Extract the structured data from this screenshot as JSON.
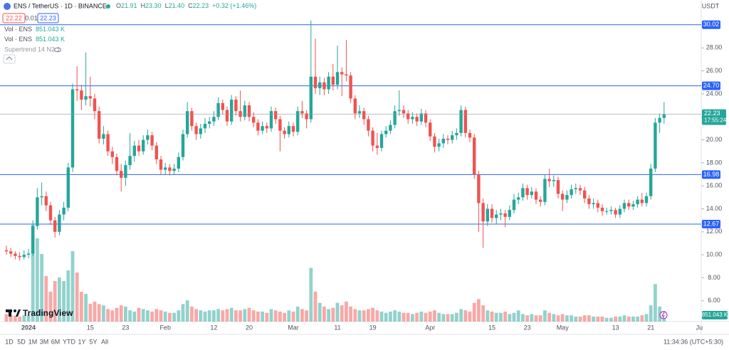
{
  "header": {
    "symbol": "ENS / TetherUS · 1D · BINANCE",
    "ohlc": [
      {
        "key": "O",
        "value": "21.91"
      },
      {
        "key": "H",
        "value": "23.30"
      },
      {
        "key": "L",
        "value": "21.40"
      },
      {
        "key": "C",
        "value": "22.23"
      }
    ],
    "change": "+0.32 (+1.46%)",
    "bid": "22.22",
    "spread": "0.01",
    "ask": "22.23"
  },
  "indicators": [
    {
      "name": "Vol · ENS"
    },
    {
      "name": "Vol · ENS"
    },
    {
      "name": "Supertrend 14 N2 1"
    }
  ],
  "watermark": "TradingView",
  "footer": {
    "ranges": [
      "1D",
      "5D",
      "1M",
      "3M",
      "6M",
      "YTD",
      "1Y",
      "5Y",
      "All"
    ],
    "time": "11:34:36 (UTC+5:30)"
  },
  "chart_data": {
    "type": "candlestick",
    "currency": "USDT",
    "up_color": "#26a69a",
    "down_color": "#ef5350",
    "level_color": "#2962ff",
    "ylim": [
      4.19,
      32.17
    ],
    "yticks": [
      {
        "value": 6,
        "label": "6.00"
      },
      {
        "value": 8,
        "label": "8.00"
      },
      {
        "value": 10,
        "label": "10.00"
      },
      {
        "value": 12,
        "label": "12.00"
      },
      {
        "value": 14,
        "label": "14.00"
      },
      {
        "value": 16,
        "label": "16.00"
      },
      {
        "value": 18,
        "label": "18.00"
      },
      {
        "value": 20,
        "label": "20.00"
      },
      {
        "value": 22,
        "label": "22.00"
      },
      {
        "value": 24,
        "label": "24.00"
      },
      {
        "value": 26,
        "label": "26.00"
      },
      {
        "value": 28,
        "label": "28.00"
      }
    ],
    "levels": [
      {
        "value": 30.02,
        "label": "30.02"
      },
      {
        "value": 24.7,
        "label": "24.70"
      },
      {
        "value": 16.98,
        "label": "16.98"
      },
      {
        "value": 12.67,
        "label": "12.67"
      }
    ],
    "last_price": {
      "value": 22.23,
      "countdown": "17:55:24"
    },
    "categories": [
      null,
      null,
      null,
      null,
      null,
      "2024",
      null,
      null,
      null,
      null,
      null,
      null,
      null,
      null,
      null,
      null,
      null,
      null,
      null,
      "15",
      null,
      null,
      null,
      null,
      null,
      null,
      null,
      "23",
      null,
      null,
      null,
      null,
      null,
      null,
      null,
      null,
      "Feb",
      null,
      null,
      null,
      null,
      null,
      null,
      null,
      null,
      null,
      null,
      "12",
      null,
      null,
      null,
      null,
      null,
      null,
      null,
      "20",
      null,
      null,
      null,
      null,
      null,
      null,
      null,
      null,
      null,
      "Mar",
      null,
      null,
      null,
      null,
      null,
      null,
      null,
      null,
      null,
      "11",
      null,
      null,
      null,
      null,
      null,
      null,
      null,
      "19",
      null,
      null,
      null,
      null,
      null,
      null,
      null,
      null,
      null,
      null,
      null,
      null,
      "Apr",
      null,
      null,
      null,
      null,
      null,
      null,
      null,
      null,
      null,
      null,
      null,
      null,
      null,
      "15",
      null,
      null,
      null,
      null,
      null,
      null,
      null,
      "23",
      null,
      null,
      null,
      null,
      null,
      null,
      null,
      "May",
      null,
      null,
      null,
      null,
      null,
      null,
      null,
      null,
      null,
      null,
      null,
      "13",
      null,
      null,
      null,
      null,
      null,
      null,
      null,
      "21",
      null,
      null,
      null,
      null,
      null,
      null,
      null,
      null,
      null,
      null,
      "Ju"
    ],
    "open": [
      10.4,
      10.3,
      10.1,
      9.9,
      9.8,
      10.0,
      10.1,
      12.5,
      15.0,
      15.1,
      14.3,
      13.0,
      12.0,
      13.5,
      14.1,
      17.6,
      24.4,
      24.3,
      23.5,
      23.8,
      23.6,
      22.5,
      20.1,
      20.5,
      19.0,
      18.5,
      17.3,
      16.7,
      17.8,
      18.6,
      19.5,
      19.0,
      20.0,
      20.4,
      19.5,
      18.3,
      17.4,
      17.6,
      17.3,
      17.5,
      18.5,
      20.5,
      22.5,
      21.2,
      20.5,
      21.0,
      21.4,
      21.6,
      22.0,
      23.2,
      22.6,
      21.6,
      23.5,
      22.5,
      22.0,
      23.0,
      22.0,
      21.5,
      20.8,
      21.2,
      21.0,
      22.5,
      21.8,
      20.8,
      20.5,
      21.2,
      20.7,
      22.5,
      22.3,
      21.8,
      25.5,
      24.5,
      25.0,
      24.4,
      25.5,
      24.8,
      25.9,
      25.7,
      25.6,
      23.6,
      22.3,
      22.5,
      21.8,
      20.8,
      19.5,
      19.3,
      20.5,
      20.8,
      21.3,
      22.5,
      22.6,
      22.3,
      21.8,
      22.0,
      21.6,
      22.3,
      21.5,
      20.3,
      19.4,
      19.7,
      20.1,
      20.0,
      20.4,
      20.6,
      22.6,
      20.6,
      20.2,
      17.0,
      14.5,
      12.9,
      14.0,
      13.2,
      13.5,
      13.6,
      13.3,
      13.9,
      14.8,
      15.0,
      15.8,
      15.2,
      15.5,
      14.8,
      14.6,
      16.6,
      16.4,
      16.5,
      15.3,
      14.8,
      15.2,
      15.7,
      15.8,
      15.6,
      14.9,
      14.4,
      14.5,
      14.1,
      13.8,
      13.8,
      13.9,
      13.5,
      14.0,
      14.5,
      14.2,
      14.4,
      14.8,
      14.5,
      15.1,
      17.5,
      21.5,
      21.91,
      null,
      null,
      null,
      null,
      null,
      null,
      null,
      null
    ],
    "high": [
      10.8,
      10.6,
      10.3,
      10.2,
      10.4,
      10.5,
      13.0,
      15.8,
      16.3,
      15.5,
      14.6,
      13.3,
      13.9,
      14.6,
      18.0,
      24.9,
      26.4,
      24.8,
      27.6,
      25.5,
      24.0,
      22.9,
      21.2,
      20.8,
      19.4,
      18.8,
      17.9,
      18.2,
      20.6,
      19.9,
      20.0,
      20.4,
      20.9,
      20.7,
      19.8,
      18.6,
      18.0,
      17.9,
      17.9,
      18.9,
      20.9,
      23.3,
      22.8,
      21.5,
      21.4,
      21.9,
      22.0,
      22.5,
      23.7,
      23.5,
      22.9,
      23.9,
      23.8,
      24.3,
      23.4,
      23.3,
      22.4,
      21.8,
      21.6,
      21.5,
      22.9,
      22.8,
      22.1,
      21.1,
      21.6,
      21.5,
      22.9,
      23.4,
      22.6,
      30.4,
      28.8,
      25.5,
      25.4,
      25.9,
      26.6,
      28.2,
      26.3,
      28.7,
      25.9,
      23.9,
      23.0,
      22.8,
      22.1,
      21.1,
      20.6,
      20.8,
      21.2,
      21.7,
      23.0,
      24.3,
      23.0,
      22.6,
      22.4,
      22.3,
      22.7,
      22.6,
      21.8,
      20.6,
      20.1,
      20.5,
      20.4,
      20.8,
      21.0,
      23.0,
      22.9,
      20.9,
      20.5,
      17.3,
      14.9,
      14.4,
      14.4,
      13.9,
      14.0,
      13.9,
      14.3,
      15.3,
      15.4,
      16.2,
      16.1,
      15.9,
      15.8,
      15.1,
      17.0,
      17.5,
      16.9,
      16.8,
      15.6,
      15.6,
      16.1,
      16.2,
      16.1,
      15.9,
      15.2,
      14.9,
      14.8,
      14.4,
      14.1,
      14.2,
      14.1,
      14.3,
      14.8,
      14.8,
      14.7,
      15.1,
      15.4,
      15.4,
      17.9,
      21.9,
      22.3,
      23.3,
      null,
      null,
      null,
      null,
      null,
      null,
      null,
      null
    ],
    "low": [
      10.0,
      9.8,
      9.6,
      9.5,
      9.6,
      9.7,
      9.9,
      12.2,
      14.3,
      13.8,
      12.6,
      11.5,
      11.7,
      13.0,
      13.8,
      17.2,
      23.4,
      22.6,
      23.0,
      22.9,
      21.8,
      19.7,
      19.6,
      18.6,
      17.9,
      16.9,
      15.5,
      16.0,
      17.4,
      18.1,
      18.6,
      18.7,
      19.6,
      19.1,
      17.9,
      17.0,
      17.0,
      16.9,
      17.0,
      17.2,
      18.2,
      20.2,
      20.8,
      20.0,
      20.1,
      20.6,
      21.0,
      21.2,
      21.7,
      22.2,
      21.2,
      21.3,
      22.1,
      21.6,
      21.7,
      21.6,
      21.1,
      20.4,
      20.5,
      20.6,
      20.7,
      21.4,
      19.0,
      20.1,
      20.2,
      20.3,
      20.4,
      21.9,
      21.0,
      21.5,
      24.0,
      23.9,
      23.9,
      24.0,
      24.3,
      24.4,
      23.8,
      25.1,
      23.2,
      21.8,
      21.9,
      21.3,
      20.3,
      19.0,
      18.7,
      19.0,
      20.2,
      20.5,
      21.0,
      22.1,
      21.9,
      21.4,
      21.4,
      21.2,
      21.3,
      21.1,
      19.9,
      18.9,
      19.0,
      19.3,
      19.6,
      19.7,
      20.0,
      20.3,
      20.2,
      19.8,
      16.6,
      12.0,
      10.6,
      12.5,
      12.8,
      12.7,
      13.0,
      12.4,
      13.0,
      13.6,
      14.4,
      14.7,
      14.8,
      14.9,
      14.4,
      14.2,
      14.3,
      15.9,
      15.9,
      14.9,
      13.8,
      14.5,
      14.9,
      15.3,
      15.2,
      14.5,
      14.0,
      14.0,
      13.7,
      13.4,
      13.5,
      13.5,
      13.2,
      13.2,
      13.7,
      13.9,
      13.9,
      14.1,
      14.2,
      14.2,
      14.8,
      17.2,
      20.6,
      21.4,
      null,
      null,
      null,
      null,
      null,
      null,
      null,
      null
    ],
    "close": [
      10.3,
      10.1,
      9.9,
      9.8,
      10.0,
      10.1,
      12.5,
      15.0,
      15.1,
      14.3,
      13.0,
      12.0,
      13.5,
      14.1,
      17.6,
      24.4,
      24.3,
      23.5,
      23.8,
      23.6,
      22.5,
      20.1,
      20.5,
      19.0,
      18.5,
      17.3,
      16.7,
      17.8,
      18.6,
      19.5,
      19.0,
      20.0,
      20.4,
      19.5,
      18.3,
      17.4,
      17.6,
      17.3,
      17.5,
      18.5,
      20.5,
      22.5,
      21.2,
      20.5,
      21.0,
      21.4,
      21.6,
      22.0,
      23.2,
      22.6,
      21.6,
      23.5,
      22.5,
      22.0,
      23.0,
      22.0,
      21.5,
      20.8,
      21.2,
      21.0,
      22.5,
      21.8,
      20.8,
      20.5,
      21.2,
      20.7,
      22.5,
      22.3,
      21.8,
      25.5,
      24.5,
      25.0,
      24.4,
      25.5,
      24.8,
      25.9,
      25.7,
      25.6,
      23.6,
      22.3,
      22.5,
      21.8,
      20.8,
      19.5,
      19.3,
      20.5,
      20.8,
      21.3,
      22.5,
      22.6,
      22.3,
      21.8,
      22.0,
      21.6,
      22.3,
      21.5,
      20.3,
      19.4,
      19.7,
      20.1,
      20.0,
      20.4,
      20.6,
      22.6,
      20.6,
      20.2,
      17.0,
      14.5,
      12.9,
      14.0,
      13.2,
      13.5,
      13.6,
      13.3,
      13.9,
      14.8,
      15.0,
      15.8,
      15.2,
      15.5,
      14.8,
      14.6,
      16.6,
      16.4,
      16.5,
      15.3,
      14.8,
      15.2,
      15.7,
      15.8,
      15.6,
      14.9,
      14.4,
      14.5,
      14.1,
      13.8,
      13.8,
      13.9,
      13.5,
      14.0,
      14.5,
      14.2,
      14.4,
      14.8,
      14.5,
      15.1,
      17.5,
      21.5,
      21.91,
      22.23,
      null,
      null,
      null,
      null,
      null,
      null,
      null,
      null
    ],
    "volume": {
      "name": "Vol · ENS",
      "last_label": "851.043 K",
      "values": [
        600,
        500,
        450,
        400,
        500,
        500,
        7750,
        6670,
        5420,
        3650,
        2390,
        3250,
        3530,
        3250,
        4100,
        5640,
        3930,
        2390,
        2220,
        1430,
        1600,
        1400,
        1300,
        1000,
        900,
        1100,
        1300,
        1200,
        900,
        800,
        1100,
        1000,
        900,
        800,
        1000,
        900,
        800,
        700,
        700,
        900,
        1400,
        1700,
        1200,
        1000,
        900,
        800,
        900,
        900,
        1000,
        900,
        1000,
        1100,
        900,
        900,
        1000,
        1100,
        900,
        800,
        800,
        700,
        1000,
        900,
        800,
        700,
        900,
        800,
        1200,
        1000,
        900,
        4300,
        2400,
        1500,
        1200,
        1000,
        1100,
        1500,
        1300,
        1600,
        1200,
        1000,
        900,
        900,
        1000,
        1100,
        900,
        800,
        700,
        800,
        900,
        800,
        700,
        700,
        600,
        700,
        800,
        700,
        800,
        900,
        700,
        600,
        600,
        600,
        700,
        1000,
        900,
        800,
        1500,
        1800,
        1300,
        900,
        800,
        700,
        700,
        800,
        600,
        700,
        900,
        600,
        500,
        600,
        500,
        500,
        900,
        700,
        600,
        500,
        600,
        500,
        500,
        400,
        400,
        500,
        500,
        400,
        400,
        400,
        300,
        300,
        400,
        400,
        500,
        400,
        400,
        400,
        500,
        600,
        1300,
        3000,
        1200,
        851.043,
        null,
        null,
        null,
        null,
        null,
        null,
        null,
        null
      ]
    }
  }
}
